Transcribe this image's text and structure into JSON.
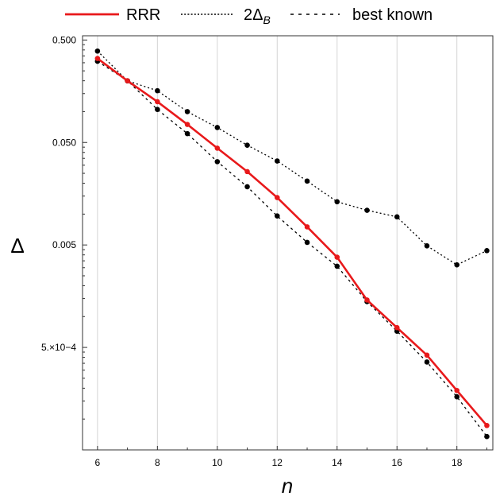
{
  "chart_data": {
    "type": "line",
    "x_scale": "linear",
    "y_scale": "log",
    "xlim": [
      5.5,
      19.2
    ],
    "ylim": [
      5e-05,
      0.55
    ],
    "xlabel": "n",
    "ylabel": "Δ",
    "x_ticks": [
      6,
      8,
      10,
      12,
      14,
      16,
      18
    ],
    "x_tick_labels": [
      "6",
      "8",
      "10",
      "12",
      "14",
      "16",
      "18"
    ],
    "y_ticks": [
      0.5,
      0.05,
      0.005,
      0.0005
    ],
    "y_tick_labels": [
      "0.500",
      "0.050",
      "0.005",
      "5.×10−4"
    ],
    "grid": "vertical",
    "legend": {
      "placement": "top",
      "entries": [
        {
          "label": "RRR",
          "style": "solid",
          "color": "#e8191b"
        },
        {
          "label": "2Δ",
          "subscript": "B",
          "style": "dotted",
          "color": "#000000"
        },
        {
          "label": "best known",
          "style": "dashed",
          "color": "#000000"
        }
      ]
    },
    "x": [
      6,
      7,
      8,
      9,
      10,
      11,
      12,
      13,
      14,
      15,
      16,
      17,
      18,
      19
    ],
    "series": [
      {
        "name": "RRR",
        "color": "#e8191b",
        "style": "solid",
        "values": [
          0.33,
          0.2,
          0.125,
          0.075,
          0.044,
          0.026,
          0.0145,
          0.0075,
          0.0038,
          0.00145,
          0.00078,
          0.00042,
          0.00019,
          8.65e-05
        ]
      },
      {
        "name": "2Δ_B",
        "color": "#000000",
        "style": "dotted",
        "values": [
          0.39,
          0.2,
          0.16,
          0.1,
          0.07,
          0.047,
          0.033,
          0.021,
          0.0132,
          0.0109,
          0.0094,
          0.0049,
          0.0032,
          0.0044
        ]
      },
      {
        "name": "best known",
        "color": "#000000",
        "style": "dashed",
        "values": [
          0.31,
          0.2,
          0.105,
          0.061,
          0.0325,
          0.0185,
          0.0096,
          0.0053,
          0.0031,
          0.0014,
          0.00072,
          0.00036,
          0.000165,
          6.75e-05
        ]
      }
    ]
  }
}
